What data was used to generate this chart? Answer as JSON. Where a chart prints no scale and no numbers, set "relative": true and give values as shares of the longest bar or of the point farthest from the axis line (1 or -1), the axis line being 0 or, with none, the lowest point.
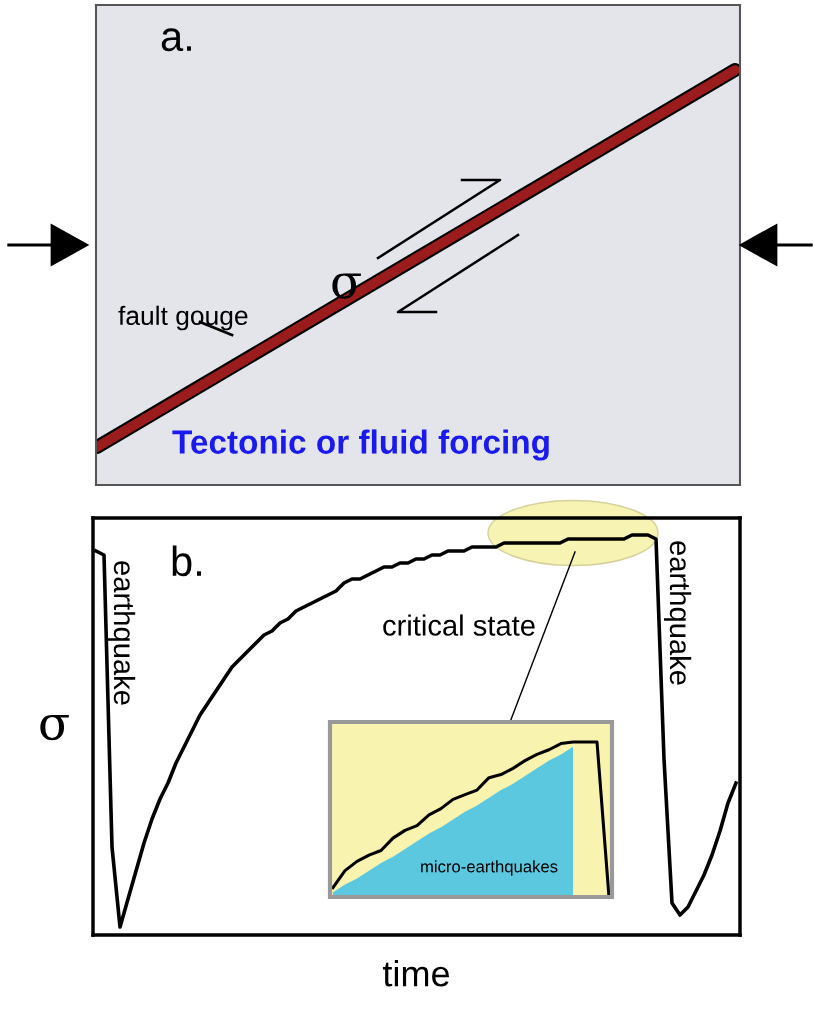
{
  "chart_data": [
    {
      "type": "other",
      "annotations": [
        "a.",
        "σ",
        "fault gouge",
        "Tectonic or fluid forcing"
      ]
    },
    {
      "type": "line",
      "relative": true,
      "xlabel": "time",
      "ylabel": "σ",
      "annotations": [
        "b.",
        "earthquake",
        "earthquake",
        "critical state"
      ],
      "categories": [
        null,
        null,
        null,
        null,
        null,
        null,
        null,
        null,
        null,
        null,
        null,
        null,
        null,
        null,
        null,
        null,
        null,
        null,
        null,
        null,
        null,
        null,
        null,
        null,
        null,
        null,
        null,
        null,
        null,
        null,
        null,
        null,
        null,
        null,
        null,
        null,
        null,
        null,
        null,
        null,
        null,
        null,
        null,
        null,
        null,
        null,
        null,
        null,
        null,
        null,
        null,
        null,
        null,
        null,
        null,
        null,
        null,
        null,
        null,
        null,
        null,
        null,
        null,
        null,
        null,
        null,
        null,
        null,
        null,
        null,
        null,
        null,
        null,
        null,
        null,
        null,
        null,
        null,
        null,
        null,
        null
      ],
      "series": [
        {
          "color": "#000000",
          "values": [
            0.96,
            0.95,
            0.22,
            0.02,
            0.09,
            0.16,
            0.23,
            0.29,
            0.34,
            0.38,
            0.43,
            0.47,
            0.51,
            0.55,
            0.58,
            0.61,
            0.64,
            0.67,
            0.69,
            0.71,
            0.73,
            0.75,
            0.76,
            0.78,
            0.79,
            0.81,
            0.82,
            0.83,
            0.84,
            0.85,
            0.86,
            0.88,
            0.89,
            0.89,
            0.9,
            0.91,
            0.92,
            0.92,
            0.93,
            0.93,
            0.94,
            0.94,
            0.95,
            0.95,
            0.96,
            0.96,
            0.96,
            0.97,
            0.97,
            0.97,
            0.97,
            0.98,
            0.98,
            0.98,
            0.98,
            0.98,
            0.98,
            0.98,
            0.98,
            0.99,
            0.99,
            0.99,
            0.99,
            0.99,
            0.99,
            0.99,
            0.99,
            1.0,
            1.0,
            1.0,
            0.99,
            0.44,
            0.08,
            0.05,
            0.07,
            0.11,
            0.15,
            0.2,
            0.26,
            0.33,
            0.38
          ]
        }
      ]
    },
    {
      "type": "line",
      "relative": true,
      "annotations": [
        "micro-earthquakes"
      ],
      "categories": [
        null,
        null,
        null,
        null,
        null,
        null,
        null,
        null,
        null,
        null,
        null,
        null,
        null,
        null,
        null,
        null,
        null,
        null,
        null,
        null,
        null,
        null,
        null,
        null
      ],
      "series": [
        {
          "type": "area",
          "color": "#5bc8e0",
          "values": [
            0.03,
            0.08,
            0.12,
            0.17,
            0.22,
            0.26,
            0.31,
            0.36,
            0.41,
            0.45,
            0.5,
            0.55,
            0.59,
            0.64,
            0.69,
            0.73,
            0.78,
            0.83,
            0.88,
            0.92,
            0.97,
            null,
            null,
            null
          ]
        },
        {
          "color": "#000000",
          "values": [
            0.06,
            0.17,
            0.23,
            0.27,
            0.3,
            0.38,
            0.43,
            0.46,
            0.53,
            0.57,
            0.63,
            0.66,
            0.69,
            0.77,
            0.79,
            0.83,
            0.88,
            0.92,
            0.95,
            0.99,
            1.0,
            1.0,
            1.0,
            0
          ]
        }
      ]
    }
  ]
}
